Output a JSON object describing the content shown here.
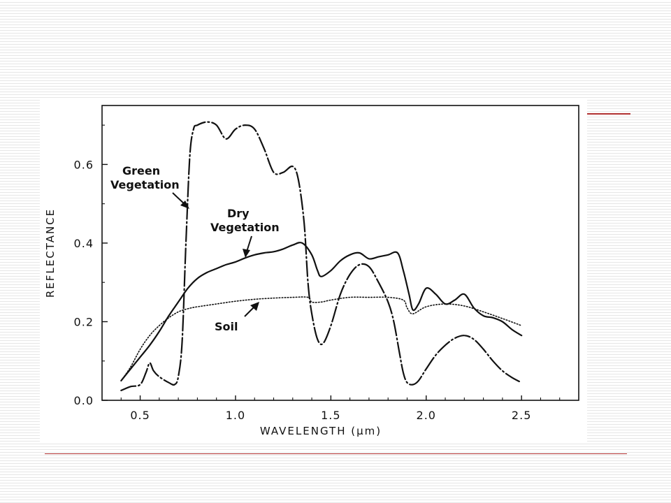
{
  "chart_data": {
    "type": "line",
    "title": "",
    "xlabel": "WAVELENGTH (µm)",
    "ylabel": "REFLECTANCE",
    "xlim": [
      0.3,
      2.8
    ],
    "ylim": [
      0.0,
      0.75
    ],
    "xticks": [
      0.5,
      1.0,
      1.5,
      2.0,
      2.5
    ],
    "xtick_labels": [
      "0.5",
      "1.0",
      "1.5",
      "2.0",
      "2.5"
    ],
    "yticks": [
      0.0,
      0.2,
      0.4,
      0.6
    ],
    "ytick_labels": [
      "0.0",
      "0.2",
      "0.4",
      "0.6"
    ],
    "grid": false,
    "series": [
      {
        "name": "Green Vegetation",
        "style": "dash-dot",
        "x": [
          0.4,
          0.45,
          0.5,
          0.53,
          0.55,
          0.57,
          0.6,
          0.65,
          0.68,
          0.7,
          0.72,
          0.74,
          0.76,
          0.78,
          0.8,
          0.85,
          0.9,
          0.95,
          1.0,
          1.05,
          1.1,
          1.15,
          1.2,
          1.25,
          1.3,
          1.33,
          1.36,
          1.38,
          1.4,
          1.43,
          1.46,
          1.5,
          1.55,
          1.6,
          1.65,
          1.7,
          1.75,
          1.8,
          1.83,
          1.86,
          1.88,
          1.9,
          1.93,
          1.96,
          2.0,
          2.05,
          2.1,
          2.15,
          2.2,
          2.25,
          2.3,
          2.35,
          2.4,
          2.45,
          2.5
        ],
        "y": [
          0.025,
          0.035,
          0.04,
          0.07,
          0.095,
          0.075,
          0.06,
          0.045,
          0.04,
          0.06,
          0.15,
          0.4,
          0.62,
          0.69,
          0.7,
          0.708,
          0.7,
          0.665,
          0.69,
          0.7,
          0.69,
          0.64,
          0.58,
          0.58,
          0.595,
          0.56,
          0.45,
          0.3,
          0.22,
          0.155,
          0.145,
          0.19,
          0.27,
          0.32,
          0.345,
          0.34,
          0.3,
          0.25,
          0.2,
          0.12,
          0.07,
          0.045,
          0.04,
          0.05,
          0.08,
          0.115,
          0.14,
          0.158,
          0.165,
          0.155,
          0.13,
          0.1,
          0.075,
          0.058,
          0.045
        ]
      },
      {
        "name": "Dry Vegetation",
        "style": "solid",
        "x": [
          0.4,
          0.45,
          0.5,
          0.55,
          0.6,
          0.65,
          0.7,
          0.75,
          0.8,
          0.85,
          0.9,
          0.95,
          1.0,
          1.05,
          1.1,
          1.15,
          1.2,
          1.25,
          1.3,
          1.35,
          1.4,
          1.43,
          1.45,
          1.5,
          1.55,
          1.6,
          1.65,
          1.7,
          1.75,
          1.8,
          1.85,
          1.88,
          1.91,
          1.93,
          1.96,
          2.0,
          2.05,
          2.1,
          2.15,
          2.2,
          2.25,
          2.3,
          2.35,
          2.4,
          2.45,
          2.5
        ],
        "y": [
          0.05,
          0.08,
          0.11,
          0.14,
          0.175,
          0.215,
          0.25,
          0.285,
          0.31,
          0.325,
          0.335,
          0.345,
          0.352,
          0.362,
          0.37,
          0.375,
          0.378,
          0.385,
          0.395,
          0.4,
          0.37,
          0.33,
          0.315,
          0.33,
          0.355,
          0.37,
          0.375,
          0.36,
          0.365,
          0.37,
          0.375,
          0.33,
          0.27,
          0.23,
          0.245,
          0.285,
          0.27,
          0.245,
          0.255,
          0.27,
          0.235,
          0.215,
          0.21,
          0.2,
          0.18,
          0.165
        ]
      },
      {
        "name": "Soil",
        "style": "dotted",
        "x": [
          0.4,
          0.45,
          0.5,
          0.55,
          0.6,
          0.65,
          0.7,
          0.75,
          0.8,
          0.9,
          1.0,
          1.1,
          1.2,
          1.3,
          1.38,
          1.4,
          1.45,
          1.5,
          1.6,
          1.7,
          1.8,
          1.88,
          1.9,
          1.93,
          2.0,
          2.1,
          2.2,
          2.3,
          2.4,
          2.5
        ],
        "y": [
          0.05,
          0.085,
          0.13,
          0.165,
          0.19,
          0.21,
          0.225,
          0.233,
          0.238,
          0.245,
          0.252,
          0.257,
          0.26,
          0.262,
          0.262,
          0.25,
          0.25,
          0.255,
          0.262,
          0.262,
          0.262,
          0.255,
          0.235,
          0.22,
          0.238,
          0.245,
          0.24,
          0.225,
          0.208,
          0.19
        ]
      }
    ],
    "annotations": [
      {
        "lines": [
          "Green",
          "Vegetation"
        ],
        "target": "Green Vegetation"
      },
      {
        "lines": [
          "Dry",
          "Vegetation"
        ],
        "target": "Dry Vegetation"
      },
      {
        "lines": [
          "Soil"
        ],
        "target": "Soil"
      }
    ]
  }
}
